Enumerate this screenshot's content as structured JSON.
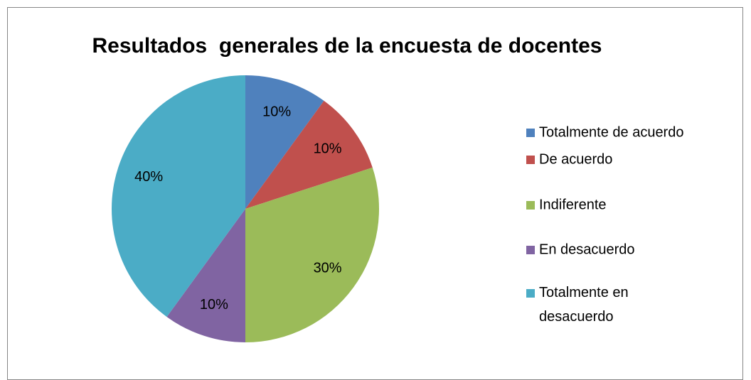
{
  "chart_data": {
    "type": "pie",
    "title": "Resultados  generales de la encuesta de docentes",
    "categories": [
      "Totalmente de acuerdo",
      "De acuerdo",
      "Indiferente",
      "En desacuerdo",
      "Totalmente en desacuerdo"
    ],
    "values": [
      10,
      10,
      30,
      10,
      40
    ],
    "value_labels": [
      "10%",
      "10%",
      "30%",
      "10%",
      "40%"
    ],
    "colors": [
      "#4f81bd",
      "#c0504d",
      "#9bbb59",
      "#8064a2",
      "#4bacc6"
    ],
    "legend": "right"
  }
}
